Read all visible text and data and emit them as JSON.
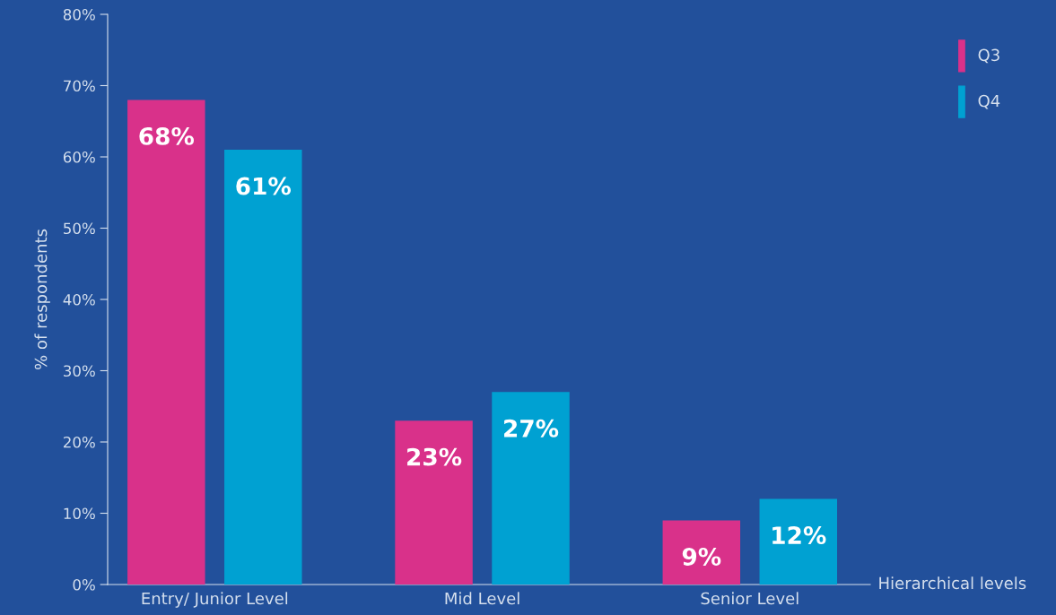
{
  "chart_data": {
    "type": "bar",
    "ylabel": "% of respondents",
    "xlabel": "Hierarchical levels",
    "categories": [
      "Entry/ Junior Level",
      "Mid Level",
      "Senior Level"
    ],
    "series": [
      {
        "name": "Q3",
        "color": "#d9318a",
        "values": [
          68,
          23,
          9
        ],
        "value_labels": [
          "68%",
          "23%",
          "9%"
        ]
      },
      {
        "name": "Q4",
        "color": "#00a1d2",
        "values": [
          61,
          27,
          12
        ],
        "value_labels": [
          "61%",
          "27%",
          "12%"
        ]
      }
    ],
    "ylim": [
      0,
      80
    ],
    "yticks": [
      {
        "value": 0,
        "label": "0%"
      },
      {
        "value": 10,
        "label": "10%"
      },
      {
        "value": 20,
        "label": "20%"
      },
      {
        "value": 30,
        "label": "30%"
      },
      {
        "value": 40,
        "label": "40%"
      },
      {
        "value": 50,
        "label": "50%"
      },
      {
        "value": 60,
        "label": "60%"
      },
      {
        "value": 70,
        "label": "70%"
      },
      {
        "value": 80,
        "label": "80%"
      }
    ],
    "grid": false,
    "legend": "top right"
  }
}
